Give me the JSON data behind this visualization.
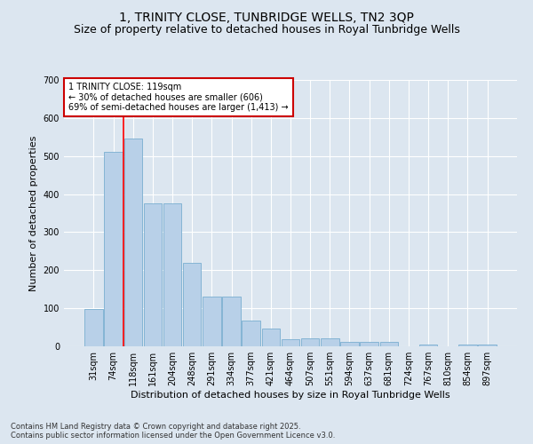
{
  "title": "1, TRINITY CLOSE, TUNBRIDGE WELLS, TN2 3QP",
  "subtitle": "Size of property relative to detached houses in Royal Tunbridge Wells",
  "xlabel": "Distribution of detached houses by size in Royal Tunbridge Wells",
  "ylabel": "Number of detached properties",
  "categories": [
    "31sqm",
    "74sqm",
    "118sqm",
    "161sqm",
    "204sqm",
    "248sqm",
    "291sqm",
    "334sqm",
    "377sqm",
    "421sqm",
    "464sqm",
    "507sqm",
    "551sqm",
    "594sqm",
    "637sqm",
    "681sqm",
    "724sqm",
    "767sqm",
    "810sqm",
    "854sqm",
    "897sqm"
  ],
  "values": [
    97,
    512,
    547,
    375,
    375,
    220,
    130,
    130,
    68,
    47,
    18,
    22,
    22,
    11,
    11,
    11,
    0,
    5,
    0,
    5,
    5
  ],
  "bar_color": "#b8d0e8",
  "bar_edge_color": "#7aaed0",
  "background_color": "#dce6f0",
  "annotation_text": "1 TRINITY CLOSE: 119sqm\n← 30% of detached houses are smaller (606)\n69% of semi-detached houses are larger (1,413) →",
  "vline_x_index": 2,
  "annotation_box_facecolor": "#ffffff",
  "annotation_box_edgecolor": "#cc0000",
  "ylim": [
    0,
    700
  ],
  "yticks": [
    0,
    100,
    200,
    300,
    400,
    500,
    600,
    700
  ],
  "footer": "Contains HM Land Registry data © Crown copyright and database right 2025.\nContains public sector information licensed under the Open Government Licence v3.0.",
  "title_fontsize": 10,
  "subtitle_fontsize": 9,
  "axis_label_fontsize": 8,
  "tick_fontsize": 7,
  "annotation_fontsize": 7,
  "footer_fontsize": 6
}
